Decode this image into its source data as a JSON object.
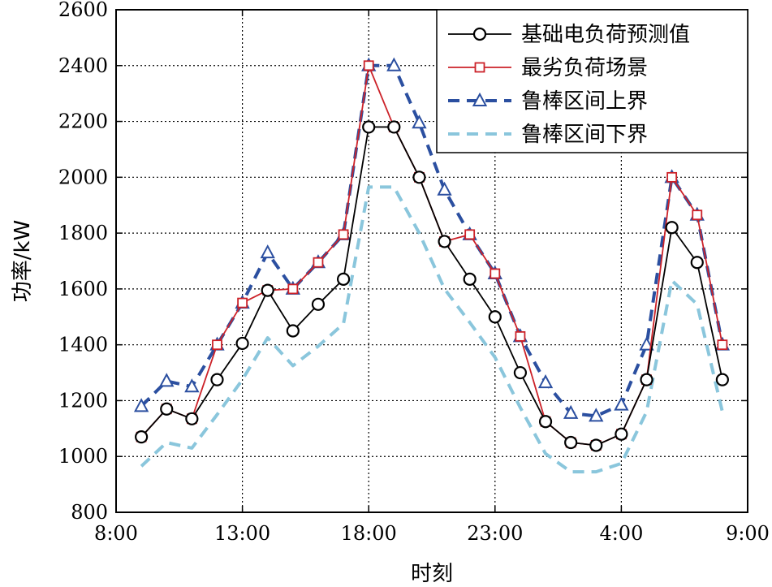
{
  "chart_data": {
    "type": "line",
    "title": "",
    "xlabel": "时刻",
    "ylabel": "功率/kW",
    "ylim": [
      800,
      2600
    ],
    "yticks": [
      800,
      1000,
      1200,
      1400,
      1600,
      1800,
      2000,
      2200,
      2400,
      2600
    ],
    "xlim": [
      8,
      33
    ],
    "xticks": [
      {
        "value": 8,
        "label": "8:00"
      },
      {
        "value": 13,
        "label": "13:00"
      },
      {
        "value": 18,
        "label": "18:00"
      },
      {
        "value": 23,
        "label": "23:00"
      },
      {
        "value": 28,
        "label": "4:00"
      },
      {
        "value": 33,
        "label": "9:00"
      }
    ],
    "grid": true,
    "legend_position": "top-right",
    "x": [
      9,
      10,
      11,
      12,
      13,
      14,
      15,
      16,
      17,
      18,
      19,
      20,
      21,
      22,
      23,
      24,
      25,
      26,
      27,
      28,
      29,
      30,
      31,
      32
    ],
    "series": [
      {
        "name": "基础电负荷预测值",
        "color": "#000000",
        "line_style": "solid",
        "marker": "circle",
        "marker_color": "#000000",
        "values": [
          1070,
          1170,
          1135,
          1275,
          1405,
          1595,
          1450,
          1545,
          1635,
          2180,
          2180,
          2000,
          1770,
          1635,
          1500,
          1300,
          1125,
          1050,
          1040,
          1080,
          1275,
          1820,
          1695,
          1275
        ]
      },
      {
        "name": "最劣负荷场景",
        "color": "#cc2229",
        "line_style": "solid",
        "marker": "square",
        "marker_color": "#cc2229",
        "values": [
          1070,
          1170,
          1135,
          1400,
          1550,
          1595,
          1600,
          1695,
          1795,
          2400,
          2180,
          2000,
          1770,
          1795,
          1655,
          1430,
          1125,
          1050,
          1040,
          1080,
          1275,
          2000,
          1865,
          1400
        ]
      },
      {
        "name": "鲁棒区间上界",
        "color": "#2b4fa0",
        "line_style": "dashed",
        "marker": "triangle",
        "marker_color": "#2b4fa0",
        "values": [
          1180,
          1270,
          1250,
          1400,
          1550,
          1730,
          1600,
          1695,
          1795,
          2400,
          2400,
          2195,
          1955,
          1795,
          1655,
          1430,
          1265,
          1155,
          1145,
          1185,
          1400,
          2000,
          1865,
          1400
        ]
      },
      {
        "name": "鲁棒区间下界",
        "color": "#8ac6dc",
        "line_style": "dashed",
        "marker": "none",
        "marker_color": "#8ac6dc",
        "values": [
          965,
          1050,
          1030,
          1150,
          1275,
          1425,
          1325,
          1395,
          1475,
          1965,
          1965,
          1800,
          1600,
          1480,
          1355,
          1175,
          1010,
          945,
          945,
          975,
          1160,
          1630,
          1545,
          1160
        ]
      }
    ]
  }
}
